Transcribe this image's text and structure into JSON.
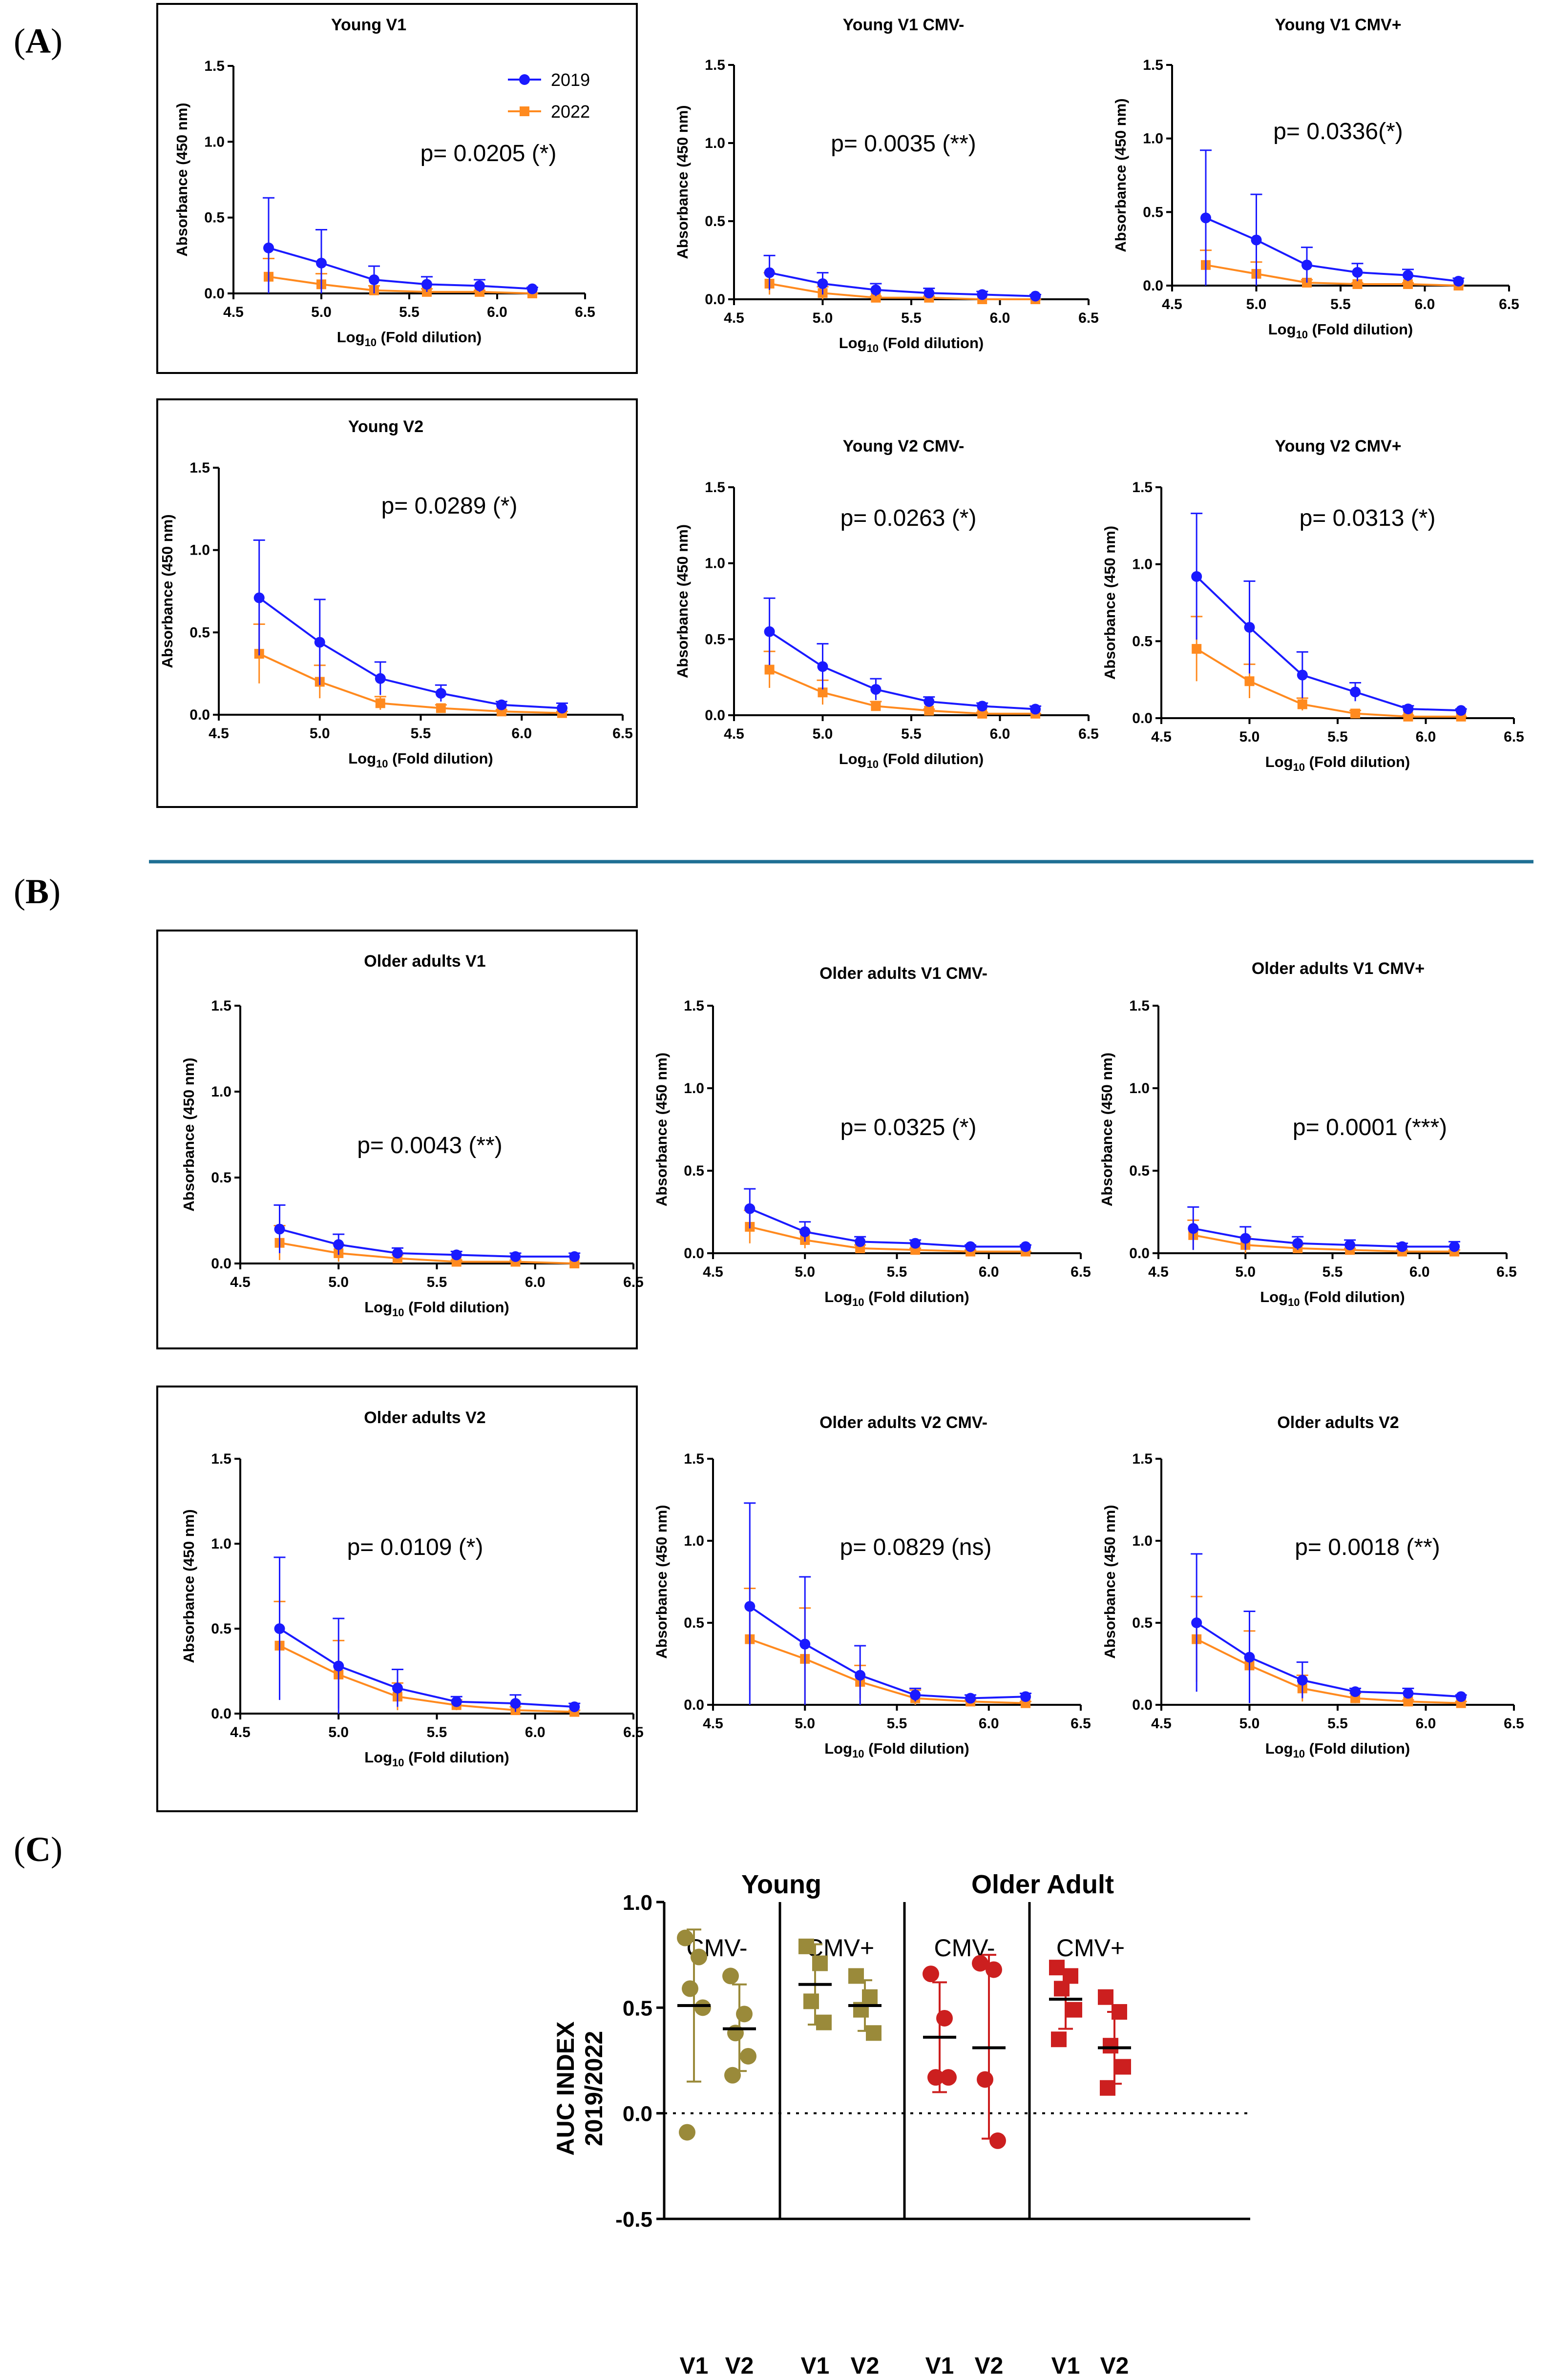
{
  "figure": {
    "panel_labels": {
      "A": {
        "open": "(",
        "letter": "A",
        "close": ")"
      },
      "B": {
        "open": "(",
        "letter": "B",
        "close": ")"
      },
      "C": {
        "open": "(",
        "letter": "C",
        "close": ")"
      }
    },
    "legend": [
      {
        "name": "2019",
        "color": "#1a1aff",
        "marker": "circle"
      },
      {
        "name": "2022",
        "color": "#ff8a1f",
        "marker": "square"
      }
    ],
    "colors": {
      "series_2019": "#1a1aff",
      "series_2022": "#ff8a1f",
      "divider": "#1f6f94",
      "young": "#9a8a3a",
      "older": "#cc1f1f"
    }
  },
  "chart_data": [
    {
      "type": "line",
      "id": "A1",
      "title": "Young V1",
      "pvalue": "p= 0.0205 (*)",
      "xlabel": "Log10 (Fold dilution)",
      "ylabel": "Absorbance (450 nm)",
      "xlim": [
        4.5,
        6.5
      ],
      "ylim": [
        0,
        1.5
      ],
      "x": [
        4.7,
        5.0,
        5.3,
        5.6,
        5.9,
        6.2
      ],
      "series": [
        {
          "name": "2019",
          "values": [
            0.3,
            0.2,
            0.09,
            0.06,
            0.05,
            0.03
          ],
          "err": [
            0.33,
            0.22,
            0.09,
            0.05,
            0.04,
            0.01
          ]
        },
        {
          "name": "2022",
          "values": [
            0.11,
            0.06,
            0.02,
            0.01,
            0.01,
            0.0
          ],
          "err": [
            0.12,
            0.07,
            0.03,
            0.02,
            0.01,
            0.0
          ]
        }
      ]
    },
    {
      "type": "line",
      "id": "A2",
      "title": "Young V1 CMV-",
      "pvalue": "p= 0.0035 (**)",
      "xlabel": "Log10 (Fold dilution)",
      "ylabel": "Absorbance (450 nm)",
      "xlim": [
        4.5,
        6.5
      ],
      "ylim": [
        0,
        1.5
      ],
      "x": [
        4.7,
        5.0,
        5.3,
        5.6,
        5.9,
        6.2
      ],
      "series": [
        {
          "name": "2019",
          "values": [
            0.17,
            0.1,
            0.06,
            0.04,
            0.03,
            0.02
          ],
          "err": [
            0.11,
            0.07,
            0.04,
            0.03,
            0.02,
            0.01
          ]
        },
        {
          "name": "2022",
          "values": [
            0.1,
            0.04,
            0.01,
            0.01,
            0.0,
            0.0
          ],
          "err": [
            0.07,
            0.04,
            0.01,
            0.01,
            0.0,
            0.0
          ]
        }
      ]
    },
    {
      "type": "line",
      "id": "A3",
      "title": "Young V1 CMV+",
      "pvalue": "p= 0.0336(*)",
      "xlabel": "Log10 (Fold dilution)",
      "ylabel": "Absorbance (450 nm)",
      "xlim": [
        4.5,
        6.5
      ],
      "ylim": [
        0,
        1.5
      ],
      "x": [
        4.7,
        5.0,
        5.3,
        5.6,
        5.9,
        6.2
      ],
      "series": [
        {
          "name": "2019",
          "values": [
            0.46,
            0.31,
            0.14,
            0.09,
            0.07,
            0.03
          ],
          "err": [
            0.46,
            0.31,
            0.12,
            0.06,
            0.04,
            0.02
          ]
        },
        {
          "name": "2022",
          "values": [
            0.14,
            0.08,
            0.02,
            0.01,
            0.01,
            0.0
          ],
          "err": [
            0.1,
            0.08,
            0.02,
            0.01,
            0.01,
            0.0
          ]
        }
      ]
    },
    {
      "type": "line",
      "id": "A4",
      "title": "Young V2",
      "pvalue": "p= 0.0289 (*)",
      "xlabel": "Log10 (Fold dilution)",
      "ylabel": "Absorbance (450 nm)",
      "xlim": [
        4.5,
        6.5
      ],
      "ylim": [
        0,
        1.5
      ],
      "x": [
        4.7,
        5.0,
        5.3,
        5.6,
        5.9,
        6.2
      ],
      "series": [
        {
          "name": "2019",
          "values": [
            0.71,
            0.44,
            0.22,
            0.13,
            0.06,
            0.04
          ],
          "err": [
            0.35,
            0.26,
            0.1,
            0.05,
            0.02,
            0.03
          ]
        },
        {
          "name": "2022",
          "values": [
            0.37,
            0.2,
            0.07,
            0.04,
            0.02,
            0.01
          ],
          "err": [
            0.18,
            0.1,
            0.04,
            0.02,
            0.01,
            0.01
          ]
        }
      ]
    },
    {
      "type": "line",
      "id": "A5",
      "title": "Young V2 CMV-",
      "pvalue": "p= 0.0263 (*)",
      "xlabel": "Log10 (Fold dilution)",
      "ylabel": "Absorbance (450 nm)",
      "xlim": [
        4.5,
        6.5
      ],
      "ylim": [
        0,
        1.5
      ],
      "x": [
        4.7,
        5.0,
        5.3,
        5.6,
        5.9,
        6.2
      ],
      "series": [
        {
          "name": "2019",
          "values": [
            0.55,
            0.32,
            0.17,
            0.09,
            0.06,
            0.04
          ],
          "err": [
            0.22,
            0.15,
            0.07,
            0.03,
            0.02,
            0.02
          ]
        },
        {
          "name": "2022",
          "values": [
            0.3,
            0.15,
            0.06,
            0.03,
            0.01,
            0.01
          ],
          "err": [
            0.12,
            0.08,
            0.03,
            0.01,
            0.01,
            0.0
          ]
        }
      ]
    },
    {
      "type": "line",
      "id": "A6",
      "title": "Young V2 CMV+",
      "pvalue": "p= 0.0313 (*)",
      "xlabel": "Log10 (Fold dilution)",
      "ylabel": "Absorbance (450 nm)",
      "xlim": [
        4.5,
        6.5
      ],
      "ylim": [
        0,
        1.5
      ],
      "x": [
        4.7,
        5.0,
        5.3,
        5.6,
        5.9,
        6.2
      ],
      "series": [
        {
          "name": "2019",
          "values": [
            0.92,
            0.59,
            0.28,
            0.17,
            0.06,
            0.05
          ],
          "err": [
            0.41,
            0.3,
            0.15,
            0.06,
            0.02,
            0.01
          ]
        },
        {
          "name": "2022",
          "values": [
            0.45,
            0.24,
            0.09,
            0.03,
            0.01,
            0.01
          ],
          "err": [
            0.21,
            0.11,
            0.04,
            0.02,
            0.01,
            0.0
          ]
        }
      ]
    },
    {
      "type": "line",
      "id": "B1",
      "title": "Older adults V1",
      "pvalue": "p= 0.0043 (**)",
      "xlabel": "Log10 (Fold dilution)",
      "ylabel": "Absorbance (450 nm)",
      "xlim": [
        4.5,
        6.5
      ],
      "ylim": [
        0,
        1.5
      ],
      "x": [
        4.7,
        5.0,
        5.3,
        5.6,
        5.9,
        6.2
      ],
      "series": [
        {
          "name": "2019",
          "values": [
            0.2,
            0.11,
            0.06,
            0.05,
            0.04,
            0.04
          ],
          "err": [
            0.14,
            0.06,
            0.03,
            0.02,
            0.02,
            0.02
          ]
        },
        {
          "name": "2022",
          "values": [
            0.12,
            0.06,
            0.03,
            0.01,
            0.01,
            0.0
          ],
          "err": [
            0.1,
            0.05,
            0.02,
            0.01,
            0.01,
            0.0
          ]
        }
      ]
    },
    {
      "type": "line",
      "id": "B2",
      "title": "Older adults V1 CMV-",
      "pvalue": "p= 0.0325 (*)",
      "xlabel": "Log10 (Fold dilution)",
      "ylabel": "Absorbance (450 nm)",
      "xlim": [
        4.5,
        6.5
      ],
      "ylim": [
        0,
        1.5
      ],
      "x": [
        4.7,
        5.0,
        5.3,
        5.6,
        5.9,
        6.2
      ],
      "series": [
        {
          "name": "2019",
          "values": [
            0.27,
            0.13,
            0.07,
            0.06,
            0.04,
            0.04
          ],
          "err": [
            0.12,
            0.06,
            0.03,
            0.02,
            0.01,
            0.01
          ]
        },
        {
          "name": "2022",
          "values": [
            0.16,
            0.08,
            0.03,
            0.02,
            0.01,
            0.01
          ],
          "err": [
            0.1,
            0.05,
            0.02,
            0.01,
            0.01,
            0.0
          ]
        }
      ]
    },
    {
      "type": "line",
      "id": "B3",
      "title": "Older adults V1 CMV+",
      "pvalue": "p= 0.0001 (***)",
      "xlabel": "Log10 (Fold dilution)",
      "ylabel": "Absorbance (450 nm)",
      "xlim": [
        4.5,
        6.5
      ],
      "ylim": [
        0,
        1.5
      ],
      "x": [
        4.7,
        5.0,
        5.3,
        5.6,
        5.9,
        6.2
      ],
      "series": [
        {
          "name": "2019",
          "values": [
            0.15,
            0.09,
            0.06,
            0.05,
            0.04,
            0.04
          ],
          "err": [
            0.13,
            0.07,
            0.04,
            0.03,
            0.02,
            0.03
          ]
        },
        {
          "name": "2022",
          "values": [
            0.11,
            0.05,
            0.03,
            0.02,
            0.01,
            0.01
          ],
          "err": [
            0.09,
            0.05,
            0.02,
            0.01,
            0.01,
            0.01
          ]
        }
      ]
    },
    {
      "type": "line",
      "id": "B4",
      "title": "Older adults V2",
      "pvalue": "p= 0.0109 (*)",
      "xlabel": "Log10 (Fold dilution)",
      "ylabel": "Absorbance (450 nm)",
      "xlim": [
        4.5,
        6.5
      ],
      "ylim": [
        0,
        1.5
      ],
      "x": [
        4.7,
        5.0,
        5.3,
        5.6,
        5.9,
        6.2
      ],
      "series": [
        {
          "name": "2019",
          "values": [
            0.5,
            0.28,
            0.15,
            0.07,
            0.06,
            0.04
          ],
          "err": [
            0.42,
            0.28,
            0.11,
            0.03,
            0.05,
            0.02
          ]
        },
        {
          "name": "2022",
          "values": [
            0.4,
            0.23,
            0.1,
            0.05,
            0.02,
            0.01
          ],
          "err": [
            0.26,
            0.2,
            0.08,
            0.03,
            0.02,
            0.01
          ]
        }
      ]
    },
    {
      "type": "line",
      "id": "B5",
      "title": "Older adults V2 CMV-",
      "pvalue": "p= 0.0829 (ns)",
      "xlabel": "Log10 (Fold dilution)",
      "ylabel": "Absorbance (450 nm)",
      "xlim": [
        4.5,
        6.5
      ],
      "ylim": [
        0,
        1.5
      ],
      "x": [
        4.7,
        5.0,
        5.3,
        5.6,
        5.9,
        6.2
      ],
      "series": [
        {
          "name": "2019",
          "values": [
            0.6,
            0.37,
            0.18,
            0.06,
            0.04,
            0.05
          ],
          "err": [
            0.63,
            0.41,
            0.18,
            0.04,
            0.02,
            0.02
          ]
        },
        {
          "name": "2022",
          "values": [
            0.4,
            0.28,
            0.14,
            0.04,
            0.02,
            0.01
          ],
          "err": [
            0.31,
            0.31,
            0.1,
            0.05,
            0.01,
            0.01
          ]
        }
      ]
    },
    {
      "type": "line",
      "id": "B6",
      "title": "Older adults V2",
      "pvalue": "p= 0.0018 (**)",
      "xlabel": "Log10 (Fold dilution)",
      "ylabel": "Absorbance (450 nm)",
      "xlim": [
        4.5,
        6.5
      ],
      "ylim": [
        0,
        1.5
      ],
      "x": [
        4.7,
        5.0,
        5.3,
        5.6,
        5.9,
        6.2
      ],
      "series": [
        {
          "name": "2019",
          "values": [
            0.5,
            0.29,
            0.15,
            0.08,
            0.07,
            0.05
          ],
          "err": [
            0.42,
            0.28,
            0.11,
            0.02,
            0.03,
            0.01
          ]
        },
        {
          "name": "2022",
          "values": [
            0.4,
            0.24,
            0.1,
            0.04,
            0.02,
            0.01
          ],
          "err": [
            0.26,
            0.21,
            0.08,
            0.03,
            0.01,
            0.01
          ]
        }
      ]
    },
    {
      "type": "scatter",
      "id": "C",
      "title": "",
      "ylabel": "AUC INDEX 2019/2022",
      "ylim": [
        -0.5,
        1.0
      ],
      "yticks": [
        -0.5,
        0.0,
        0.5,
        1.0
      ],
      "groups": [
        "Young",
        "Older Adult"
      ],
      "subgroups": [
        "CMV-",
        "CMV+",
        "CMV-",
        "CMV+"
      ],
      "categories": [
        "V1",
        "V2",
        "V1",
        "V2",
        "V1",
        "V2",
        "V1",
        "V2"
      ],
      "series": [
        {
          "group": "Young",
          "subgroup": "CMV-",
          "visit": "V1",
          "marker": "circle",
          "mean": 0.51,
          "sd_low": 0.15,
          "sd_high": 0.87,
          "values": [
            0.83,
            0.74,
            0.59,
            0.5,
            -0.09
          ]
        },
        {
          "group": "Young",
          "subgroup": "CMV-",
          "visit": "V2",
          "marker": "circle",
          "mean": 0.4,
          "sd_low": 0.2,
          "sd_high": 0.61,
          "values": [
            0.65,
            0.47,
            0.38,
            0.27,
            0.18
          ]
        },
        {
          "group": "Young",
          "subgroup": "CMV+",
          "visit": "V1",
          "marker": "square",
          "mean": 0.61,
          "sd_low": 0.42,
          "sd_high": 0.8,
          "values": [
            0.79,
            0.71,
            0.53,
            0.43
          ]
        },
        {
          "group": "Young",
          "subgroup": "CMV+",
          "visit": "V2",
          "marker": "square",
          "mean": 0.51,
          "sd_low": 0.39,
          "sd_high": 0.63,
          "values": [
            0.65,
            0.55,
            0.49,
            0.38
          ]
        },
        {
          "group": "Older Adult",
          "subgroup": "CMV-",
          "visit": "V1",
          "marker": "circle",
          "mean": 0.36,
          "sd_low": 0.1,
          "sd_high": 0.62,
          "values": [
            0.66,
            0.45,
            0.17,
            0.17
          ]
        },
        {
          "group": "Older Adult",
          "subgroup": "CMV-",
          "visit": "V2",
          "marker": "circle",
          "mean": 0.31,
          "sd_low": -0.12,
          "sd_high": 0.75,
          "values": [
            0.71,
            0.68,
            0.16,
            -0.13
          ]
        },
        {
          "group": "Older Adult",
          "subgroup": "CMV+",
          "visit": "V1",
          "marker": "square",
          "mean": 0.54,
          "sd_low": 0.4,
          "sd_high": 0.68,
          "values": [
            0.69,
            0.65,
            0.59,
            0.49,
            0.35
          ]
        },
        {
          "group": "Older Adult",
          "subgroup": "CMV+",
          "visit": "V2",
          "marker": "square",
          "mean": 0.31,
          "sd_low": 0.14,
          "sd_high": 0.48,
          "values": [
            0.55,
            0.48,
            0.32,
            0.22,
            0.12
          ]
        }
      ]
    }
  ]
}
